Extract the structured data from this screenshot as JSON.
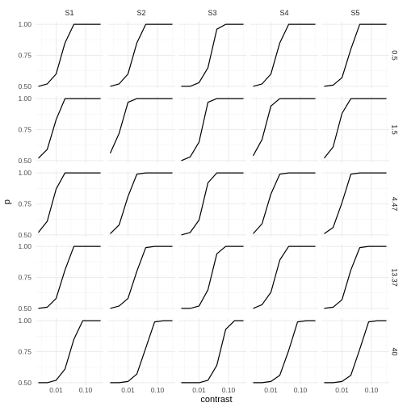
{
  "chart_data": {
    "type": "line",
    "xlabel": "contrast",
    "ylabel": "p",
    "x_scale": "log10",
    "xlim": [
      0.002,
      0.4
    ],
    "ylim": [
      0.48,
      1.02
    ],
    "x_ticks": [
      0.01,
      0.1
    ],
    "x_tick_labels": [
      "0.01",
      "0.10"
    ],
    "y_ticks": [
      0.5,
      0.75,
      1.0
    ],
    "y_tick_labels": [
      "0.50",
      "0.75",
      "1.00"
    ],
    "grid": true,
    "columns": [
      "S1",
      "S2",
      "S3",
      "S4",
      "S5"
    ],
    "rows": [
      "0.5",
      "1.5",
      "4.47",
      "13.37",
      "40"
    ],
    "x": [
      0.0025,
      0.005,
      0.01,
      0.02,
      0.04,
      0.08,
      0.16,
      0.32
    ],
    "panels": [
      [
        {
          "subject": "S1",
          "row": "0.5",
          "values": [
            0.5,
            0.52,
            0.6,
            0.85,
            1.0,
            1.0,
            1.0,
            1.0
          ]
        },
        {
          "subject": "S2",
          "row": "0.5",
          "values": [
            0.5,
            0.52,
            0.6,
            0.85,
            1.0,
            1.0,
            1.0,
            1.0
          ]
        },
        {
          "subject": "S3",
          "row": "0.5",
          "values": [
            0.5,
            0.5,
            0.53,
            0.65,
            0.96,
            1.0,
            1.0,
            1.0
          ]
        },
        {
          "subject": "S4",
          "row": "0.5",
          "values": [
            0.5,
            0.52,
            0.6,
            0.85,
            1.0,
            1.0,
            1.0,
            1.0
          ]
        },
        {
          "subject": "S5",
          "row": "0.5",
          "values": [
            0.5,
            0.51,
            0.57,
            0.8,
            1.0,
            1.0,
            1.0,
            1.0
          ]
        }
      ],
      [
        {
          "subject": "S1",
          "row": "1.5",
          "values": [
            0.52,
            0.59,
            0.83,
            1.0,
            1.0,
            1.0,
            1.0,
            1.0
          ]
        },
        {
          "subject": "S2",
          "row": "1.5",
          "values": [
            0.56,
            0.72,
            0.97,
            1.0,
            1.0,
            1.0,
            1.0,
            1.0
          ]
        },
        {
          "subject": "S3",
          "row": "1.5",
          "values": [
            0.5,
            0.53,
            0.65,
            0.97,
            1.0,
            1.0,
            1.0,
            1.0
          ]
        },
        {
          "subject": "S4",
          "row": "1.5",
          "values": [
            0.54,
            0.67,
            0.94,
            1.0,
            1.0,
            1.0,
            1.0,
            1.0
          ]
        },
        {
          "subject": "S5",
          "row": "1.5",
          "values": [
            0.52,
            0.61,
            0.88,
            1.0,
            1.0,
            1.0,
            1.0,
            1.0
          ]
        }
      ],
      [
        {
          "subject": "S1",
          "row": "4.47",
          "values": [
            0.52,
            0.61,
            0.87,
            1.0,
            1.0,
            1.0,
            1.0,
            1.0
          ]
        },
        {
          "subject": "S2",
          "row": "4.47",
          "values": [
            0.51,
            0.58,
            0.81,
            0.99,
            1.0,
            1.0,
            1.0,
            1.0
          ]
        },
        {
          "subject": "S3",
          "row": "4.47",
          "values": [
            0.5,
            0.52,
            0.62,
            0.92,
            1.0,
            1.0,
            1.0,
            1.0
          ]
        },
        {
          "subject": "S4",
          "row": "4.47",
          "values": [
            0.51,
            0.59,
            0.83,
            0.99,
            1.0,
            1.0,
            1.0,
            1.0
          ]
        },
        {
          "subject": "S5",
          "row": "4.47",
          "values": [
            0.51,
            0.56,
            0.76,
            0.99,
            1.0,
            1.0,
            1.0,
            1.0
          ]
        }
      ],
      [
        {
          "subject": "S1",
          "row": "13.37",
          "values": [
            0.5,
            0.51,
            0.58,
            0.81,
            1.0,
            1.0,
            1.0,
            1.0
          ]
        },
        {
          "subject": "S2",
          "row": "13.37",
          "values": [
            0.5,
            0.52,
            0.58,
            0.8,
            0.99,
            1.0,
            1.0,
            1.0
          ]
        },
        {
          "subject": "S3",
          "row": "13.37",
          "values": [
            0.5,
            0.5,
            0.52,
            0.65,
            0.94,
            1.0,
            1.0,
            1.0
          ]
        },
        {
          "subject": "S4",
          "row": "13.37",
          "values": [
            0.5,
            0.53,
            0.63,
            0.89,
            1.0,
            1.0,
            1.0,
            1.0
          ]
        },
        {
          "subject": "S5",
          "row": "13.37",
          "values": [
            0.5,
            0.51,
            0.57,
            0.81,
            0.99,
            1.0,
            1.0,
            1.0
          ]
        }
      ],
      [
        {
          "subject": "S1",
          "row": "40",
          "values": [
            0.5,
            0.5,
            0.52,
            0.61,
            0.85,
            1.0,
            1.0,
            1.0
          ]
        },
        {
          "subject": "S2",
          "row": "40",
          "values": [
            0.5,
            0.5,
            0.51,
            0.57,
            0.78,
            0.99,
            1.0,
            1.0
          ]
        },
        {
          "subject": "S3",
          "row": "40",
          "values": [
            0.5,
            0.5,
            0.5,
            0.52,
            0.64,
            0.93,
            1.0,
            1.0
          ]
        },
        {
          "subject": "S4",
          "row": "40",
          "values": [
            0.5,
            0.5,
            0.51,
            0.56,
            0.76,
            0.99,
            1.0,
            1.0
          ]
        },
        {
          "subject": "S5",
          "row": "40",
          "values": [
            0.5,
            0.5,
            0.51,
            0.56,
            0.77,
            0.99,
            1.0,
            1.0
          ]
        }
      ]
    ]
  },
  "colors": {
    "line": "#000000",
    "grid_major": "#ebebeb",
    "grid_minor": "#f4f4f4",
    "text": "#4d4d4d",
    "title": "#000000",
    "strip_text": "#1a1a1a"
  }
}
